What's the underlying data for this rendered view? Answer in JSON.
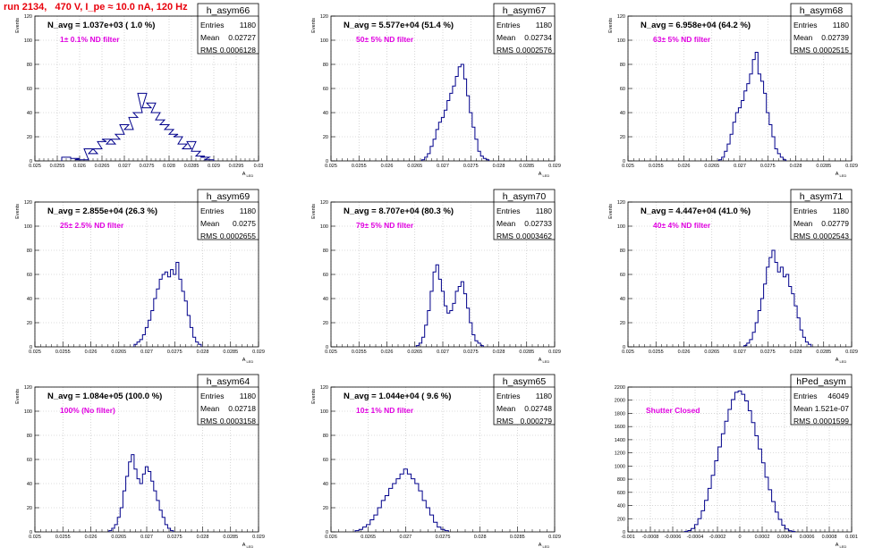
{
  "header": {
    "run_title": "run 2134,   470 V, I_pe ≈ 10.0 nA, 120 Hz"
  },
  "chart_data": [
    {
      "type": "histogram",
      "name": "h_asym66",
      "n_avg": "N_avg = 1.037e+03 ( 1.0 %)",
      "filter": "1± 0.1% ND filter",
      "entries": "1180",
      "mean": "0.02727",
      "rms": "0.0006128",
      "xlabel": "A_LED",
      "ylabel": "Events",
      "xlim": [
        0.025,
        0.03
      ],
      "ylim": [
        0,
        120
      ],
      "xticks": [
        "0.025",
        "0.0255",
        "0.026",
        "0.0265",
        "0.027",
        "0.0275",
        "0.028",
        "0.0285",
        "0.029",
        "0.0295",
        "0.03"
      ],
      "yticks": [
        "0",
        "20",
        "40",
        "60",
        "80",
        "100",
        "120"
      ],
      "bins": [
        [
          0.0257,
          3
        ],
        [
          0.0259,
          2
        ],
        [
          0.026,
          1
        ],
        [
          0.0261,
          1
        ],
        [
          0.0262,
          10
        ],
        [
          0.0263,
          6
        ],
        [
          0.0264,
          10
        ],
        [
          0.0265,
          16
        ],
        [
          0.0266,
          18
        ],
        [
          0.0267,
          14
        ],
        [
          0.0268,
          18
        ],
        [
          0.0269,
          22
        ],
        [
          0.027,
          30
        ],
        [
          0.0271,
          26
        ],
        [
          0.0272,
          36
        ],
        [
          0.0273,
          40
        ],
        [
          0.0274,
          56
        ],
        [
          0.0275,
          44
        ],
        [
          0.0276,
          48
        ],
        [
          0.0277,
          40
        ],
        [
          0.0278,
          34
        ],
        [
          0.0279,
          30
        ],
        [
          0.028,
          26
        ],
        [
          0.0281,
          22
        ],
        [
          0.0282,
          20
        ],
        [
          0.0283,
          14
        ],
        [
          0.0284,
          10
        ],
        [
          0.0285,
          16
        ],
        [
          0.0286,
          8
        ],
        [
          0.0287,
          4
        ],
        [
          0.0288,
          3
        ],
        [
          0.0289,
          1
        ]
      ]
    },
    {
      "type": "histogram",
      "name": "h_asym67",
      "n_avg": "N_avg = 5.577e+04 (51.4 %)",
      "filter": "50± 5% ND filter",
      "entries": "1180",
      "mean": "0.02734",
      "rms": "0.0002576",
      "xlabel": "A_LED",
      "ylabel": "Events",
      "xlim": [
        0.025,
        0.029
      ],
      "ylim": [
        0,
        120
      ],
      "xticks": [
        "0.025",
        "0.0255",
        "0.026",
        "0.0265",
        "0.027",
        "0.0275",
        "0.028",
        "0.0285",
        "0.029"
      ],
      "yticks": [
        "0",
        "20",
        "40",
        "60",
        "80",
        "100",
        "120"
      ],
      "bins": [
        [
          0.02665,
          1
        ],
        [
          0.0267,
          3
        ],
        [
          0.02675,
          6
        ],
        [
          0.0268,
          12
        ],
        [
          0.02685,
          18
        ],
        [
          0.0269,
          26
        ],
        [
          0.02695,
          32
        ],
        [
          0.027,
          36
        ],
        [
          0.02705,
          42
        ],
        [
          0.0271,
          50
        ],
        [
          0.02715,
          56
        ],
        [
          0.0272,
          62
        ],
        [
          0.02725,
          70
        ],
        [
          0.0273,
          78
        ],
        [
          0.02735,
          80
        ],
        [
          0.0274,
          68
        ],
        [
          0.02745,
          54
        ],
        [
          0.0275,
          40
        ],
        [
          0.02755,
          28
        ],
        [
          0.0276,
          18
        ],
        [
          0.02765,
          8
        ],
        [
          0.0277,
          4
        ],
        [
          0.02775,
          2
        ],
        [
          0.0278,
          1
        ]
      ]
    },
    {
      "type": "histogram",
      "name": "h_asym68",
      "n_avg": "N_avg = 6.958e+04 (64.2 %)",
      "filter": "63± 5% ND filter",
      "entries": "1180",
      "mean": "0.02739",
      "rms": "0.0002515",
      "xlabel": "A_LED",
      "ylabel": "Events",
      "xlim": [
        0.025,
        0.029
      ],
      "ylim": [
        0,
        120
      ],
      "xticks": [
        "0.025",
        "0.0255",
        "0.026",
        "0.0265",
        "0.027",
        "0.0275",
        "0.028",
        "0.0285",
        "0.029"
      ],
      "yticks": [
        "0",
        "20",
        "40",
        "60",
        "80",
        "100",
        "120"
      ],
      "bins": [
        [
          0.02665,
          1
        ],
        [
          0.0267,
          3
        ],
        [
          0.02675,
          8
        ],
        [
          0.0268,
          14
        ],
        [
          0.02685,
          22
        ],
        [
          0.0269,
          32
        ],
        [
          0.02695,
          40
        ],
        [
          0.027,
          44
        ],
        [
          0.02705,
          50
        ],
        [
          0.0271,
          58
        ],
        [
          0.02715,
          64
        ],
        [
          0.0272,
          72
        ],
        [
          0.02725,
          84
        ],
        [
          0.0273,
          90
        ],
        [
          0.02735,
          72
        ],
        [
          0.0274,
          66
        ],
        [
          0.02745,
          56
        ],
        [
          0.0275,
          40
        ],
        [
          0.02755,
          30
        ],
        [
          0.0276,
          20
        ],
        [
          0.02765,
          10
        ],
        [
          0.0277,
          6
        ],
        [
          0.02775,
          3
        ],
        [
          0.0278,
          1
        ]
      ]
    },
    {
      "type": "histogram",
      "name": "h_asym69",
      "n_avg": "N_avg = 2.855e+04 (26.3 %)",
      "filter": "25± 2.5% ND filter",
      "entries": "1180",
      "mean": "0.0275",
      "rms": "0.0002655",
      "xlabel": "A_LED",
      "ylabel": "Events",
      "xlim": [
        0.025,
        0.029
      ],
      "ylim": [
        0,
        120
      ],
      "xticks": [
        "0.025",
        "0.0255",
        "0.026",
        "0.0265",
        "0.027",
        "0.0275",
        "0.028",
        "0.0285",
        "0.029"
      ],
      "yticks": [
        "0",
        "20",
        "40",
        "60",
        "80",
        "100",
        "120"
      ],
      "bins": [
        [
          0.0268,
          2
        ],
        [
          0.02685,
          4
        ],
        [
          0.0269,
          6
        ],
        [
          0.02695,
          10
        ],
        [
          0.027,
          16
        ],
        [
          0.02705,
          22
        ],
        [
          0.0271,
          30
        ],
        [
          0.02715,
          40
        ],
        [
          0.0272,
          48
        ],
        [
          0.02725,
          56
        ],
        [
          0.0273,
          60
        ],
        [
          0.02735,
          62
        ],
        [
          0.0274,
          58
        ],
        [
          0.02745,
          64
        ],
        [
          0.0275,
          60
        ],
        [
          0.02755,
          70
        ],
        [
          0.0276,
          56
        ],
        [
          0.02765,
          46
        ],
        [
          0.0277,
          38
        ],
        [
          0.02775,
          26
        ],
        [
          0.0278,
          16
        ],
        [
          0.02785,
          8
        ],
        [
          0.0279,
          4
        ],
        [
          0.02795,
          2
        ]
      ]
    },
    {
      "type": "histogram",
      "name": "h_asym70",
      "n_avg": "N_avg = 8.707e+04 (80.3 %)",
      "filter": "79± 5% ND filter",
      "entries": "1180",
      "mean": "0.02733",
      "rms": "0.0003462",
      "xlabel": "A_LED",
      "ylabel": "Events",
      "xlim": [
        0.025,
        0.029
      ],
      "ylim": [
        0,
        120
      ],
      "xticks": [
        "0.025",
        "0.0255",
        "0.026",
        "0.0265",
        "0.027",
        "0.0275",
        "0.028",
        "0.0285",
        "0.029"
      ],
      "yticks": [
        "0",
        "20",
        "40",
        "60",
        "80",
        "100",
        "120"
      ],
      "bins": [
        [
          0.02655,
          1
        ],
        [
          0.0266,
          3
        ],
        [
          0.02665,
          8
        ],
        [
          0.0267,
          18
        ],
        [
          0.02675,
          30
        ],
        [
          0.0268,
          46
        ],
        [
          0.02685,
          62
        ],
        [
          0.0269,
          68
        ],
        [
          0.02695,
          56
        ],
        [
          0.027,
          46
        ],
        [
          0.02705,
          34
        ],
        [
          0.0271,
          28
        ],
        [
          0.02715,
          30
        ],
        [
          0.0272,
          36
        ],
        [
          0.02725,
          46
        ],
        [
          0.0273,
          50
        ],
        [
          0.02735,
          54
        ],
        [
          0.0274,
          44
        ],
        [
          0.02745,
          32
        ],
        [
          0.0275,
          20
        ],
        [
          0.02755,
          10
        ],
        [
          0.0276,
          5
        ],
        [
          0.02765,
          3
        ],
        [
          0.0277,
          1
        ]
      ]
    },
    {
      "type": "histogram",
      "name": "h_asym71",
      "n_avg": "N_avg = 4.447e+04 (41.0 %)",
      "filter": "40± 4% ND filter",
      "entries": "1180",
      "mean": "0.02779",
      "rms": "0.0002543",
      "xlabel": "A_LED",
      "ylabel": "Events",
      "xlim": [
        0.025,
        0.029
      ],
      "ylim": [
        0,
        120
      ],
      "xticks": [
        "0.025",
        "0.0255",
        "0.026",
        "0.0265",
        "0.027",
        "0.0275",
        "0.028",
        "0.0285",
        "0.029"
      ],
      "yticks": [
        "0",
        "20",
        "40",
        "60",
        "80",
        "100",
        "120"
      ],
      "bins": [
        [
          0.0271,
          1
        ],
        [
          0.02715,
          3
        ],
        [
          0.0272,
          6
        ],
        [
          0.02725,
          12
        ],
        [
          0.0273,
          20
        ],
        [
          0.02735,
          30
        ],
        [
          0.0274,
          40
        ],
        [
          0.02745,
          52
        ],
        [
          0.0275,
          66
        ],
        [
          0.02755,
          74
        ],
        [
          0.0276,
          80
        ],
        [
          0.02765,
          70
        ],
        [
          0.0277,
          62
        ],
        [
          0.02775,
          66
        ],
        [
          0.0278,
          58
        ],
        [
          0.02785,
          60
        ],
        [
          0.0279,
          50
        ],
        [
          0.02795,
          44
        ],
        [
          0.028,
          34
        ],
        [
          0.02805,
          24
        ],
        [
          0.0281,
          14
        ],
        [
          0.02815,
          8
        ],
        [
          0.0282,
          4
        ],
        [
          0.02825,
          2
        ]
      ]
    },
    {
      "type": "histogram",
      "name": "h_asym64",
      "n_avg": "N_avg = 1.084e+05 (100.0 %)",
      "filter": "100% (No filter)",
      "entries": "1180",
      "mean": "0.02718",
      "rms": "0.0003158",
      "xlabel": "A_LED",
      "ylabel": "Events",
      "xlim": [
        0.025,
        0.029
      ],
      "ylim": [
        0,
        120
      ],
      "xticks": [
        "0.025",
        "0.0255",
        "0.026",
        "0.0265",
        "0.027",
        "0.0275",
        "0.028",
        "0.0285",
        "0.029"
      ],
      "yticks": [
        "0",
        "20",
        "40",
        "60",
        "80",
        "100",
        "120"
      ],
      "bins": [
        [
          0.02635,
          1
        ],
        [
          0.0264,
          3
        ],
        [
          0.02645,
          6
        ],
        [
          0.0265,
          12
        ],
        [
          0.02655,
          20
        ],
        [
          0.0266,
          34
        ],
        [
          0.02665,
          46
        ],
        [
          0.0267,
          58
        ],
        [
          0.02675,
          64
        ],
        [
          0.0268,
          52
        ],
        [
          0.02685,
          44
        ],
        [
          0.0269,
          40
        ],
        [
          0.02695,
          48
        ],
        [
          0.027,
          54
        ],
        [
          0.02705,
          50
        ],
        [
          0.0271,
          42
        ],
        [
          0.02715,
          34
        ],
        [
          0.0272,
          26
        ],
        [
          0.02725,
          18
        ],
        [
          0.0273,
          12
        ],
        [
          0.02735,
          6
        ],
        [
          0.0274,
          3
        ],
        [
          0.02745,
          1
        ]
      ]
    },
    {
      "type": "histogram",
      "name": "h_asym65",
      "n_avg": "N_avg = 1.044e+04 ( 9.6 %)",
      "filter": "10± 1% ND filter",
      "entries": "1180",
      "mean": "0.02748",
      "rms": "0.000279",
      "xlabel": "A_LED",
      "ylabel": "Events",
      "xlim": [
        0.026,
        0.029
      ],
      "ylim": [
        0,
        120
      ],
      "xticks": [
        "0.026",
        "0.0265",
        "0.027",
        "0.0275",
        "0.028",
        "0.0285",
        "0.029"
      ],
      "yticks": [
        "0",
        "20",
        "40",
        "60",
        "80",
        "100",
        "120"
      ],
      "bins": [
        [
          0.02635,
          1
        ],
        [
          0.0264,
          2
        ],
        [
          0.02645,
          4
        ],
        [
          0.0265,
          6
        ],
        [
          0.02655,
          10
        ],
        [
          0.0266,
          14
        ],
        [
          0.02665,
          20
        ],
        [
          0.0267,
          26
        ],
        [
          0.02675,
          30
        ],
        [
          0.0268,
          36
        ],
        [
          0.02685,
          40
        ],
        [
          0.0269,
          44
        ],
        [
          0.02695,
          48
        ],
        [
          0.027,
          52
        ],
        [
          0.02705,
          48
        ],
        [
          0.0271,
          44
        ],
        [
          0.02715,
          40
        ],
        [
          0.0272,
          34
        ],
        [
          0.02725,
          26
        ],
        [
          0.0273,
          20
        ],
        [
          0.02735,
          14
        ],
        [
          0.0274,
          8
        ],
        [
          0.02745,
          4
        ],
        [
          0.0275,
          2
        ],
        [
          0.02755,
          1
        ]
      ]
    },
    {
      "type": "histogram",
      "name": "hPed_asym",
      "n_avg": "",
      "filter": "Shutter Closed",
      "entries": "46049",
      "mean": "1.521e-07",
      "rms": "0.0001599",
      "xlabel": "A_LED",
      "ylabel": "",
      "xlim": [
        -0.001,
        0.001
      ],
      "ylim": [
        0,
        2200
      ],
      "xticks": [
        "-0.001",
        "-0.0008",
        "-0.0006",
        "-0.0004",
        "-0.0002",
        "0",
        "0.0002",
        "0.0004",
        "0.0006",
        "0.0008",
        "0.001"
      ],
      "yticks": [
        "0",
        "200",
        "400",
        "600",
        "800",
        "1000",
        "1200",
        "1400",
        "1600",
        "1800",
        "2000",
        "2200"
      ],
      "bins": [
        [
          -0.00048,
          6
        ],
        [
          -0.00045,
          20
        ],
        [
          -0.00042,
          50
        ],
        [
          -0.00039,
          110
        ],
        [
          -0.00036,
          200
        ],
        [
          -0.00033,
          320
        ],
        [
          -0.0003,
          480
        ],
        [
          -0.00027,
          660
        ],
        [
          -0.00024,
          860
        ],
        [
          -0.00021,
          1080
        ],
        [
          -0.00018,
          1290
        ],
        [
          -0.00015,
          1490
        ],
        [
          -0.00012,
          1680
        ],
        [
          -9e-05,
          1860
        ],
        [
          -6e-05,
          2010
        ],
        [
          -3e-05,
          2120
        ],
        [
          0,
          2140
        ],
        [
          3e-05,
          2090
        ],
        [
          6e-05,
          1990
        ],
        [
          9e-05,
          1840
        ],
        [
          0.00012,
          1660
        ],
        [
          0.00015,
          1460
        ],
        [
          0.00018,
          1260
        ],
        [
          0.00021,
          1050
        ],
        [
          0.00024,
          830
        ],
        [
          0.00027,
          640
        ],
        [
          0.0003,
          460
        ],
        [
          0.00033,
          300
        ],
        [
          0.00036,
          190
        ],
        [
          0.00039,
          100
        ],
        [
          0.00042,
          45
        ],
        [
          0.00045,
          18
        ],
        [
          0.00048,
          5
        ]
      ]
    }
  ]
}
